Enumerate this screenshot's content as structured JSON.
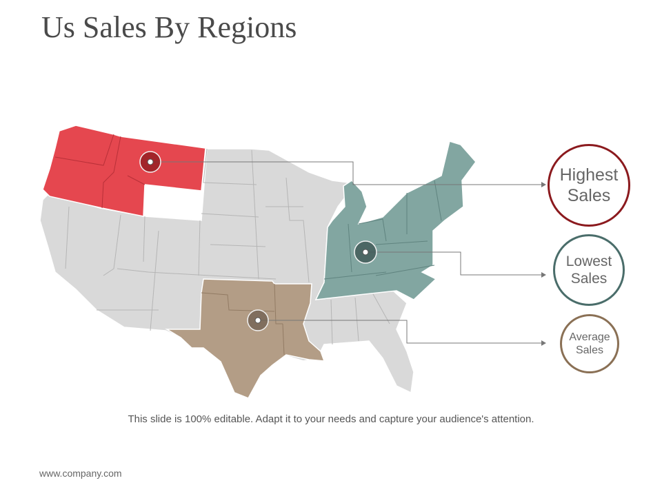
{
  "slide": {
    "title": "Us Sales By Regions",
    "caption": "This slide is 100% editable. Adapt it to your needs and capture your audience's attention.",
    "footer": "www.company.com"
  },
  "legend": {
    "highest": {
      "label": "Highest Sales",
      "color": "#8b1a1e"
    },
    "lowest": {
      "label": "Lowest Sales",
      "color": "#4a6d6a"
    },
    "average": {
      "label": "Average Sales",
      "color": "#8a7055"
    }
  },
  "regions": {
    "highest": {
      "fill": "#e5474f"
    },
    "lowest": {
      "fill": "#82a6a1"
    },
    "average": {
      "fill": "#b39d86"
    },
    "other": {
      "fill": "#d9d9d9"
    }
  },
  "colors": {
    "line": "#777777",
    "border": "#9a9a9a"
  }
}
